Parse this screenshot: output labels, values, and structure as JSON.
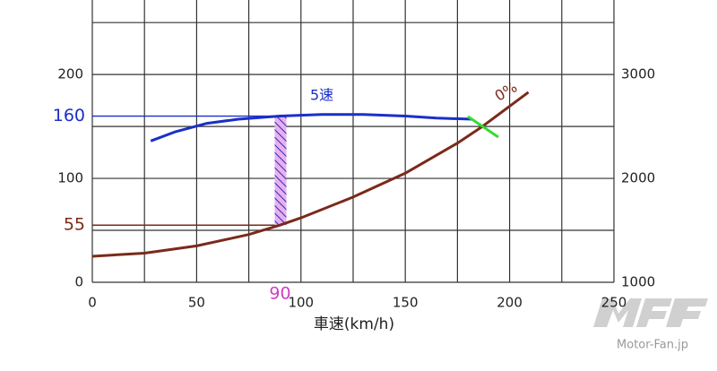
{
  "chart_data": {
    "type": "line",
    "xlabel": "車速(km/h)",
    "xlim": [
      0,
      250
    ],
    "xticks": [
      0,
      50,
      100,
      150,
      200,
      250
    ],
    "xgrid": [
      0,
      25,
      50,
      75,
      100,
      125,
      150,
      175,
      200,
      225,
      250
    ],
    "ylim": [
      0,
      270
    ],
    "yticks": [
      0,
      100,
      200
    ],
    "ygrid": [
      0,
      50,
      100,
      150,
      200,
      250
    ],
    "y2lim": [
      1000,
      3700
    ],
    "y2ticks": [
      1000,
      2000,
      3000
    ],
    "grid": true,
    "series": [
      {
        "name": "5速",
        "color": "#1a2fc8",
        "x": [
          28,
          40,
          55,
          70,
          90,
          110,
          130,
          150,
          165,
          182
        ],
        "values": [
          136,
          145,
          153,
          157,
          160,
          161.5,
          161.5,
          160,
          158,
          157
        ]
      },
      {
        "name": "0%",
        "color": "#7a2a1a",
        "x": [
          0,
          25,
          50,
          75,
          90,
          100,
          125,
          150,
          175,
          187,
          209
        ],
        "values": [
          25,
          28,
          35,
          46,
          55,
          62,
          82,
          105,
          134,
          150,
          183
        ]
      }
    ],
    "markers": {
      "y": [
        160,
        55
      ],
      "y_colors": [
        "#1a2fc8",
        "#7a2a1a"
      ],
      "x": 90,
      "x_color": "#d040c0"
    },
    "watermark": "Motor-Fan.jp"
  }
}
